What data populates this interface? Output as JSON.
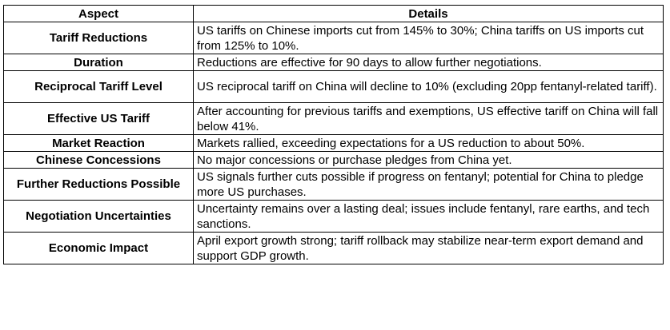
{
  "table": {
    "headers": {
      "aspect": "Aspect",
      "details": "Details"
    },
    "rows": [
      {
        "aspect": "Tariff Reductions",
        "details": "US tariffs on Chinese imports cut from 145% to 30%; China tariffs on US imports cut from 125% to 10%."
      },
      {
        "aspect": "Duration",
        "details": "Reductions are effective for 90 days to allow further negotiations."
      },
      {
        "aspect": "Reciprocal Tariff Level",
        "details": "US reciprocal tariff on China will decline to 10% (excluding 20pp fentanyl-related tariff)."
      },
      {
        "aspect": "Effective US Tariff",
        "details": "After accounting for previous tariffs and exemptions, US effective tariff on China will fall below 41%."
      },
      {
        "aspect": "Market Reaction",
        "details": "Markets rallied, exceeding expectations for a US reduction to about 50%."
      },
      {
        "aspect": "Chinese Concessions",
        "details": "No major concessions or purchase pledges from China yet."
      },
      {
        "aspect": "Further Reductions Possible",
        "details": "US signals further cuts possible if progress on fentanyl; potential for China to pledge more US purchases."
      },
      {
        "aspect": "Negotiation Uncertainties",
        "details": "Uncertainty remains over a lasting deal; issues include fentanyl, rare earths, and tech sanctions."
      },
      {
        "aspect": "Economic Impact",
        "details": "April export growth strong; tariff rollback may stabilize near-term export demand and support GDP growth."
      }
    ]
  }
}
